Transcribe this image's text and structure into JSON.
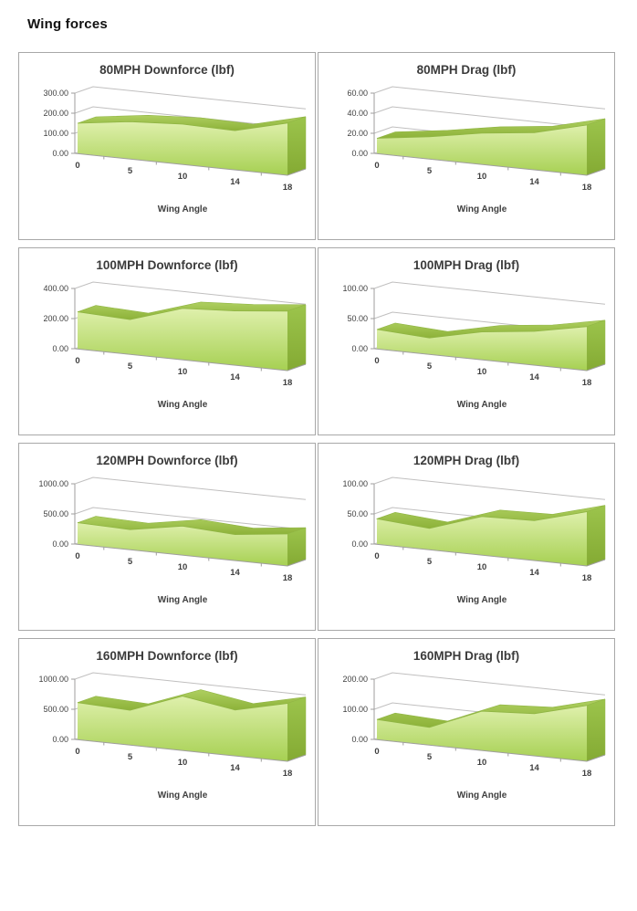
{
  "page": {
    "title": "Wing forces"
  },
  "colors": {
    "panel_border": "#a8a8a8",
    "gridline": "#c0bfbf",
    "axis_line": "#9f9e9d",
    "text": "#3f3f3f",
    "area_front_top": "#dff0ac",
    "area_front_bottom": "#a6d052",
    "area_ribbon_top": "#aecf60",
    "area_ribbon_bottom": "#8db239",
    "area_side_top": "#9cc44c",
    "area_side_bottom": "#84aa33",
    "area_edge": "#90b544"
  },
  "chart_data": [
    {
      "type": "area",
      "title": "80MPH Downforce (lbf)",
      "speed_mph": 80,
      "metric": "Downforce",
      "xlabel": "Wing Angle",
      "categories": [
        0,
        5,
        10,
        14,
        18
      ],
      "values": [
        150,
        185,
        200,
        195,
        260
      ],
      "ylim": [
        0,
        300
      ],
      "yticks": [
        0,
        100,
        200,
        300
      ],
      "ytick_labels": [
        "0.00",
        "100.00",
        "200.00",
        "300.00"
      ],
      "grid": true,
      "legend": "none"
    },
    {
      "type": "area",
      "title": "80MPH Drag (lbf)",
      "speed_mph": 80,
      "metric": "Drag",
      "xlabel": "Wing Angle",
      "categories": [
        0,
        5,
        10,
        14,
        18
      ],
      "values": [
        15,
        22,
        31,
        37,
        50
      ],
      "ylim": [
        0,
        60
      ],
      "yticks": [
        0,
        20,
        40,
        60
      ],
      "ytick_labels": [
        "0.00",
        "20.00",
        "40.00",
        "60.00"
      ],
      "grid": true,
      "legend": "none"
    },
    {
      "type": "area",
      "title": "100MPH Downforce (lbf)",
      "speed_mph": 100,
      "metric": "Downforce",
      "xlabel": "Wing Angle",
      "categories": [
        0,
        5,
        10,
        14,
        18
      ],
      "values": [
        245,
        230,
        340,
        360,
        395
      ],
      "ylim": [
        0,
        400
      ],
      "yticks": [
        0,
        200,
        400
      ],
      "ytick_labels": [
        "0.00",
        "200.00",
        "400.00"
      ],
      "grid": true,
      "legend": "none"
    },
    {
      "type": "area",
      "title": "100MPH Drag (lbf)",
      "speed_mph": 100,
      "metric": "Drag",
      "xlabel": "Wing Angle",
      "categories": [
        0,
        5,
        10,
        14,
        18
      ],
      "values": [
        32,
        27,
        46,
        56,
        73
      ],
      "ylim": [
        0,
        100
      ],
      "yticks": [
        0,
        50,
        100
      ],
      "ytick_labels": [
        "0.00",
        "50.00",
        "100.00"
      ],
      "grid": true,
      "legend": "none"
    },
    {
      "type": "area",
      "title": "120MPH Downforce (lbf)",
      "speed_mph": 120,
      "metric": "Downforce",
      "xlabel": "Wing Angle",
      "categories": [
        0,
        5,
        10,
        14,
        18
      ],
      "values": [
        355,
        330,
        480,
        430,
        530
      ],
      "ylim": [
        0,
        1000
      ],
      "yticks": [
        0,
        500,
        1000
      ],
      "ytick_labels": [
        "0.00",
        "500.00",
        "1000.00"
      ],
      "grid": true,
      "legend": "none"
    },
    {
      "type": "area",
      "title": "120MPH Drag (lbf)",
      "speed_mph": 120,
      "metric": "Drag",
      "xlabel": "Wing Angle",
      "categories": [
        0,
        5,
        10,
        14,
        18
      ],
      "values": [
        42,
        35,
        64,
        66,
        90
      ],
      "ylim": [
        0,
        100
      ],
      "yticks": [
        0,
        50,
        100
      ],
      "ytick_labels": [
        "0.00",
        "50.00",
        "100.00"
      ],
      "grid": true,
      "legend": "none"
    },
    {
      "type": "area",
      "title": "160MPH Downforce (lbf)",
      "speed_mph": 160,
      "metric": "Downforce",
      "xlabel": "Wing Angle",
      "categories": [
        0,
        5,
        10,
        14,
        18
      ],
      "values": [
        610,
        575,
        900,
        760,
        960
      ],
      "ylim": [
        0,
        1000
      ],
      "yticks": [
        0,
        500,
        1000
      ],
      "ytick_labels": [
        "0.00",
        "500.00",
        "1000.00"
      ],
      "grid": true,
      "legend": "none"
    },
    {
      "type": "area",
      "title": "160MPH Drag (lbf)",
      "speed_mph": 160,
      "metric": "Drag",
      "xlabel": "Wing Angle",
      "categories": [
        0,
        5,
        10,
        14,
        18
      ],
      "values": [
        66,
        58,
        130,
        140,
        185
      ],
      "ylim": [
        0,
        200
      ],
      "yticks": [
        0,
        100,
        200
      ],
      "ytick_labels": [
        "0.00",
        "100.00",
        "200.00"
      ],
      "grid": true,
      "legend": "none"
    }
  ]
}
